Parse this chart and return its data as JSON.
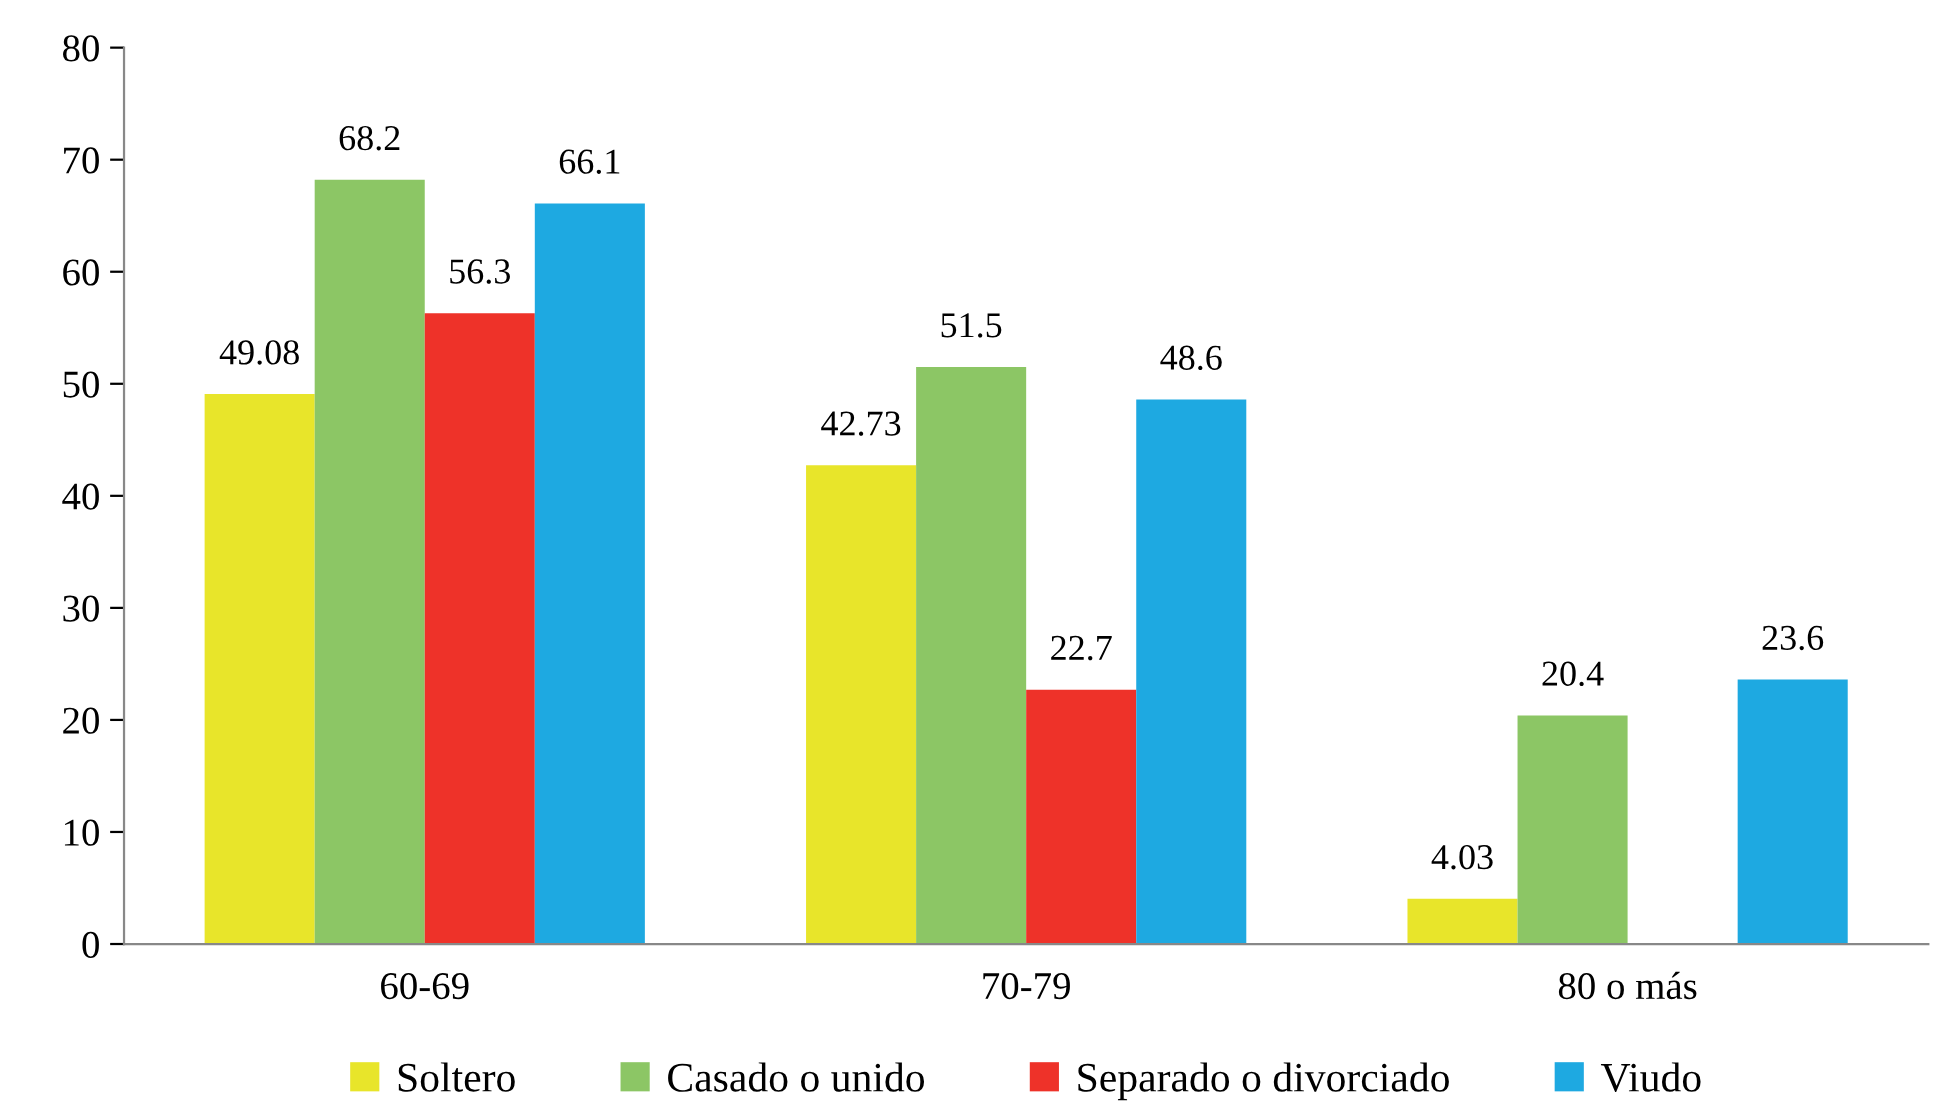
{
  "chart_data": {
    "type": "bar",
    "categories": [
      "60-69",
      "70-79",
      "80 o más"
    ],
    "series": [
      {
        "name": "Soltero",
        "color": "#e8e52a",
        "values": [
          49.08,
          42.73,
          4.03
        ]
      },
      {
        "name": "Casado o unido",
        "color": "#8cc665",
        "values": [
          68.2,
          51.5,
          20.4
        ]
      },
      {
        "name": "Separado o divorciado",
        "color": "#ee3229",
        "values": [
          56.3,
          22.7,
          null
        ]
      },
      {
        "name": "Viudo",
        "color": "#1ea9e1",
        "values": [
          66.1,
          48.6,
          23.6
        ]
      }
    ],
    "ylim": [
      0,
      80
    ],
    "yticks": [
      0,
      10,
      20,
      30,
      40,
      50,
      60,
      70,
      80
    ],
    "grid": false,
    "legend": "bottom",
    "data_labels": true
  }
}
